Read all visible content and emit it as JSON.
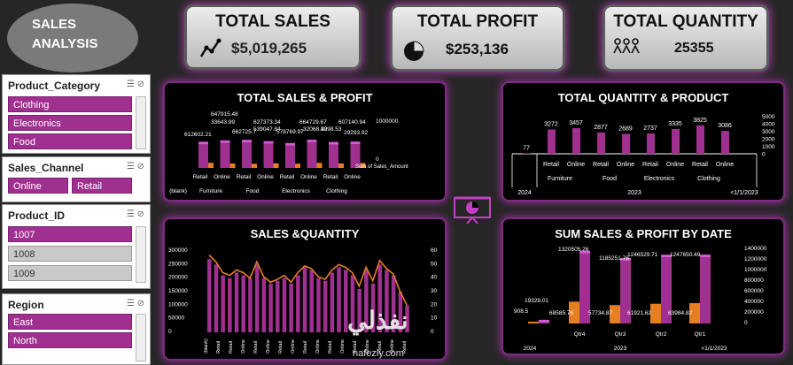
{
  "header": {
    "title_line1": "SALES",
    "title_line2": "ANALYSIS"
  },
  "kpis": [
    {
      "label": "TOTAL SALES",
      "value": "$5,019,265",
      "icon": "line-chart-icon"
    },
    {
      "label": "TOTAL PROFIT",
      "value": "$253,136",
      "icon": "pie-chart-icon"
    },
    {
      "label": "TOTAL QUANTITY",
      "value": "25355",
      "icon": "people-icon"
    }
  ],
  "slicers": {
    "category": {
      "title": "Product_Category",
      "items": [
        "Clothing",
        "Electronics",
        "Food"
      ]
    },
    "channel": {
      "title": "Sales_Channel",
      "items": [
        "Online",
        "Retail"
      ]
    },
    "product": {
      "title": "Product_ID",
      "items": [
        "1007",
        "1008",
        "1009"
      ]
    },
    "region": {
      "title": "Region",
      "items": [
        "East",
        "North"
      ]
    }
  },
  "colors": {
    "accent": "#a0308f",
    "bar_top": "#d35bd6",
    "orange": "#e67e22",
    "panel_glow": "#b032b3"
  },
  "watermark": {
    "text": "نفذلي",
    "sub": "nafezly.com"
  },
  "chart_data": [
    {
      "type": "bar",
      "title": "TOTAL SALES & PROFIT",
      "categories": [
        "(blank)",
        "Furniture Retail",
        "Furniture Online",
        "Food Retail",
        "Food Online",
        "Electronics Retail",
        "Electronics Online",
        "Clothing Retail",
        "Clothing Online"
      ],
      "group_labels": [
        "(blank)",
        "Furniture",
        "Food",
        "Electronics",
        "Clothing"
      ],
      "sub_labels": [
        "Retail",
        "Online",
        "Retail",
        "Online",
        "Retail",
        "Online",
        "Retail",
        "Online"
      ],
      "series": [
        {
          "name": "Sum of Sales_Amount",
          "values": [
            0,
            612602.21,
            647915.48,
            662725.7,
            627373.34,
            578769.97,
            664729.67,
            607140.94,
            617025
          ]
        },
        {
          "values": [
            0,
            33643.99,
            29000,
            27000,
            30000,
            28000,
            33000,
            29293.92,
            32000
          ]
        }
      ],
      "data_labels": [
        "612602.21",
        "647915.48",
        "33643.99",
        "662725.7",
        "627373.34",
        "539047.84",
        "578769.97",
        "664729.67",
        "32068.42",
        "3098.53",
        "607140.94",
        "29293.92"
      ],
      "right_axis_labels": [
        "1000000",
        "0"
      ],
      "legend": "Sum of Sales_Amount",
      "ylim": [
        0,
        1000000
      ]
    },
    {
      "type": "bar",
      "title": "TOTAL QUANTITY & PRODUCT",
      "categories": [
        "(blank)",
        "Furniture Retail",
        "Furniture Online",
        "Food Retail",
        "Food Online",
        "Electronics Retail",
        "Electronics Online",
        "Clothing Retail",
        "Clothing Online"
      ],
      "values": [
        77,
        3272,
        3457,
        2877,
        2689,
        2737,
        3335,
        3825,
        3086
      ],
      "sub_labels": [
        "Retail",
        "Online",
        "Retail",
        "Online",
        "Retail",
        "Online",
        "Retail",
        "Online"
      ],
      "group_labels": [
        "Furniture",
        "Food",
        "Electronics",
        "Clothing"
      ],
      "year_labels": [
        "2024",
        "2023",
        "<1/1/2023"
      ],
      "yticks": [
        "5000",
        "4000",
        "3000",
        "2000",
        "1000",
        "0"
      ],
      "ylim": [
        0,
        5000
      ]
    },
    {
      "type": "bar",
      "title": "SALES &QUANTITY",
      "bars": [
        270000,
        250000,
        210000,
        200000,
        220000,
        210000,
        200000,
        250000,
        200000,
        180000,
        190000,
        200000,
        180000,
        210000,
        240000,
        230000,
        200000,
        190000,
        220000,
        240000,
        230000,
        210000,
        160000,
        230000,
        180000,
        250000,
        230000,
        210000,
        150000,
        100000
      ],
      "line": [
        57,
        52,
        44,
        42,
        46,
        44,
        40,
        52,
        41,
        37,
        39,
        42,
        37,
        44,
        49,
        47,
        41,
        39,
        46,
        50,
        48,
        44,
        34,
        48,
        38,
        53,
        47,
        43,
        30,
        20
      ],
      "yticks_left": [
        "300000",
        "250000",
        "200000",
        "150000",
        "100000",
        "50000",
        "0"
      ],
      "yticks_right": [
        "60",
        "50",
        "40",
        "30",
        "20",
        "10",
        "0"
      ],
      "xlabels": [
        "(blank)",
        "Retail",
        "Retail",
        "Online",
        "Retail",
        "Online",
        "Retail",
        "Online",
        "Retail",
        "Online",
        "Retail",
        "Online",
        "Retail",
        "Online",
        "Retail",
        "Online",
        "Retail"
      ],
      "ylim": [
        0,
        300000
      ]
    },
    {
      "type": "bar",
      "title": "SUM SALES & PROFIT BY DATE",
      "categories": [
        "2024",
        "Qtr4",
        "Qtr3",
        "Qtr2",
        "Qtr1"
      ],
      "sales": [
        19328.01,
        1320505.26,
        1185251.76,
        1246529.71,
        1247650.49
      ],
      "profit": [
        908.5,
        68585.76,
        57734.87,
        61921.62,
        63984.82
      ],
      "sales_labels": [
        "19328.01",
        "1320505.26",
        "1185251.76",
        "1246529.71",
        "1247650.49"
      ],
      "profit_labels": [
        "908.5",
        "68585.76",
        "57734.87",
        "61921.62",
        "63984.82"
      ],
      "year_labels": [
        "2024",
        "2023",
        "<1/1/2023"
      ],
      "yticks": [
        "1400000",
        "1200000",
        "1000000",
        "800000",
        "600000",
        "400000",
        "200000",
        "0"
      ],
      "ylim": [
        0,
        1400000
      ]
    }
  ]
}
